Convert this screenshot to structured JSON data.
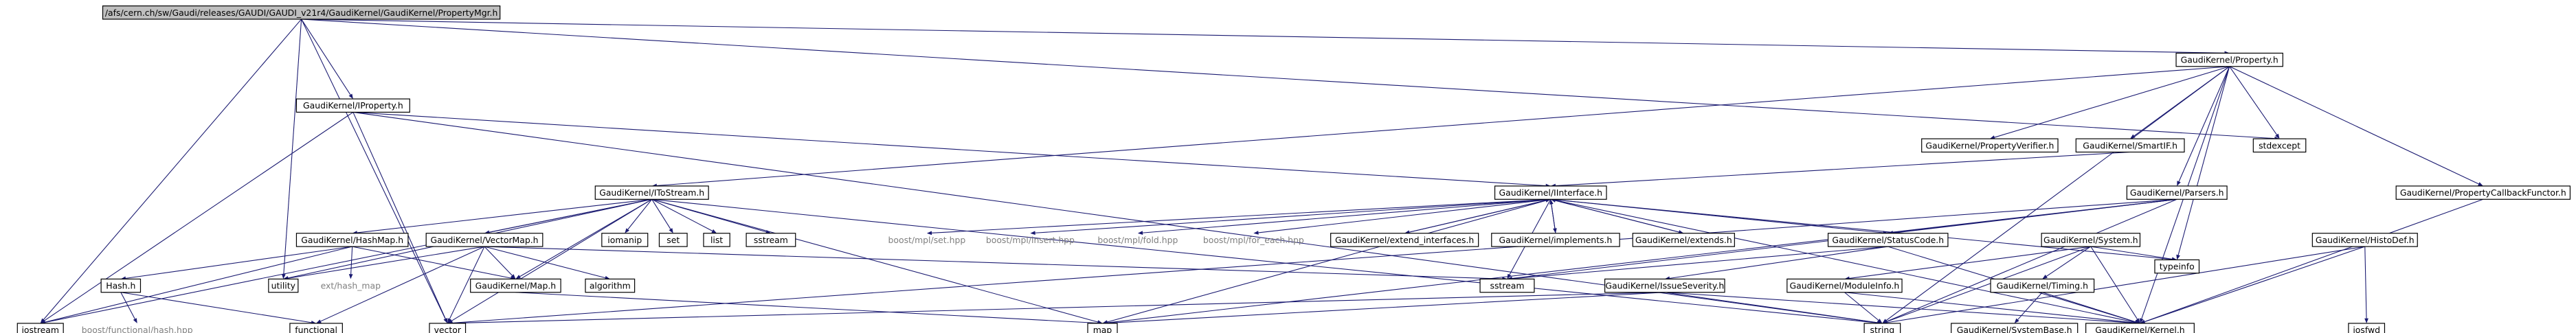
{
  "nodes": [
    "/afs/cern.ch/sw/Gaudi/releases/GAUDI/GAUDI_v21r4/GaudiKernel/GaudiKernel/PropertyMgr.h",
    "GaudiKernel/Property.h",
    "GaudiKernel/IProperty.h",
    "GaudiKernel/PropertyVerifier.h",
    "GaudiKernel/SmartIF.h",
    "stdexcept",
    "GaudiKernel/IToStream.h",
    "GaudiKernel/IInterface.h",
    "GaudiKernel/Parsers.h",
    "GaudiKernel/PropertyCallbackFunctor.h",
    "GaudiKernel/HashMap.h",
    "GaudiKernel/VectorMap.h",
    "iomanip",
    "set",
    "list",
    "sstream",
    "boost/mpl/set.hpp",
    "boost/mpl/insert.hpp",
    "boost/mpl/fold.hpp",
    "boost/mpl/for_each.hpp",
    "GaudiKernel/extend_interfaces.h",
    "GaudiKernel/implements.h",
    "GaudiKernel/extends.h",
    "GaudiKernel/StatusCode.h",
    "GaudiKernel/System.h",
    "GaudiKernel/HistoDef.h",
    "Hash.h",
    "utility",
    "ext/hash_map",
    "GaudiKernel/Map.h",
    "algorithm",
    "sstream",
    "GaudiKernel/IssueSeverity.h",
    "GaudiKernel/ModuleInfo.h",
    "GaudiKernel/Timing.h",
    "typeinfo",
    "iostream",
    "boost/functional/hash.hpp",
    "functional",
    "vector",
    "map",
    "string",
    "GaudiKernel/SystemBase.h",
    "GaudiKernel/Kernel.h",
    "iosfwd"
  ]
}
